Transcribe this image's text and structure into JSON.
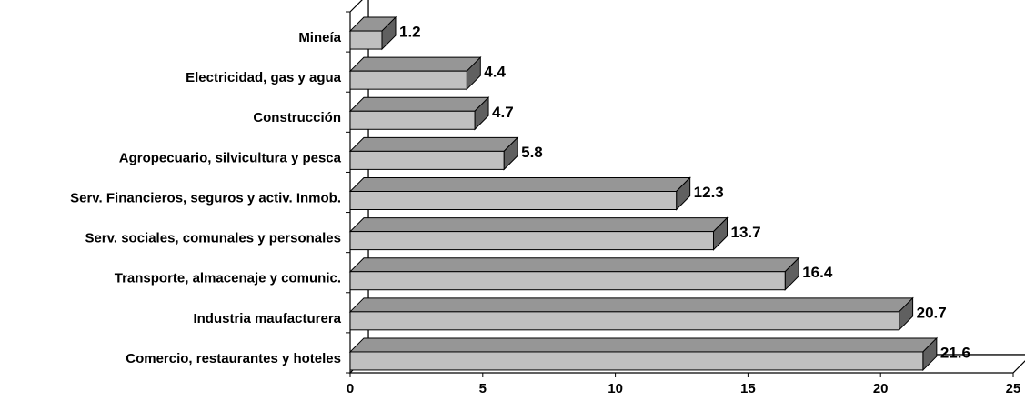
{
  "chart_data": {
    "type": "bar",
    "orientation": "horizontal",
    "three_d": true,
    "categories": [
      "Mineía",
      "Electricidad, gas y agua",
      "Construcción",
      "Agropecuario, silvicultura y pesca",
      "Serv. Financieros, seguros y activ. Inmob.",
      "Serv. sociales, comunales y personales",
      "Transporte, almacenaje y comunic.",
      "Industria maufacturera",
      "Comercio, restaurantes y hoteles"
    ],
    "values": [
      1.2,
      4.4,
      4.7,
      5.8,
      12.3,
      13.7,
      16.4,
      20.7,
      21.6
    ],
    "value_labels": [
      "1.2",
      "4.4",
      "4.7",
      "5.8",
      "12.3",
      "13.7",
      "16.4",
      "20.7",
      "21.6"
    ],
    "xlim": [
      0,
      25
    ],
    "x_ticks": [
      0,
      5,
      10,
      15,
      20,
      25
    ],
    "x_tick_labels": [
      "0",
      "5",
      "10",
      "15",
      "20",
      "25"
    ],
    "grid": false,
    "legend": "none",
    "colors": {
      "bar_front": "#c0c0c0",
      "bar_top": "#969696",
      "bar_side": "#606060",
      "outline": "#000000",
      "background": "#ffffff"
    }
  }
}
